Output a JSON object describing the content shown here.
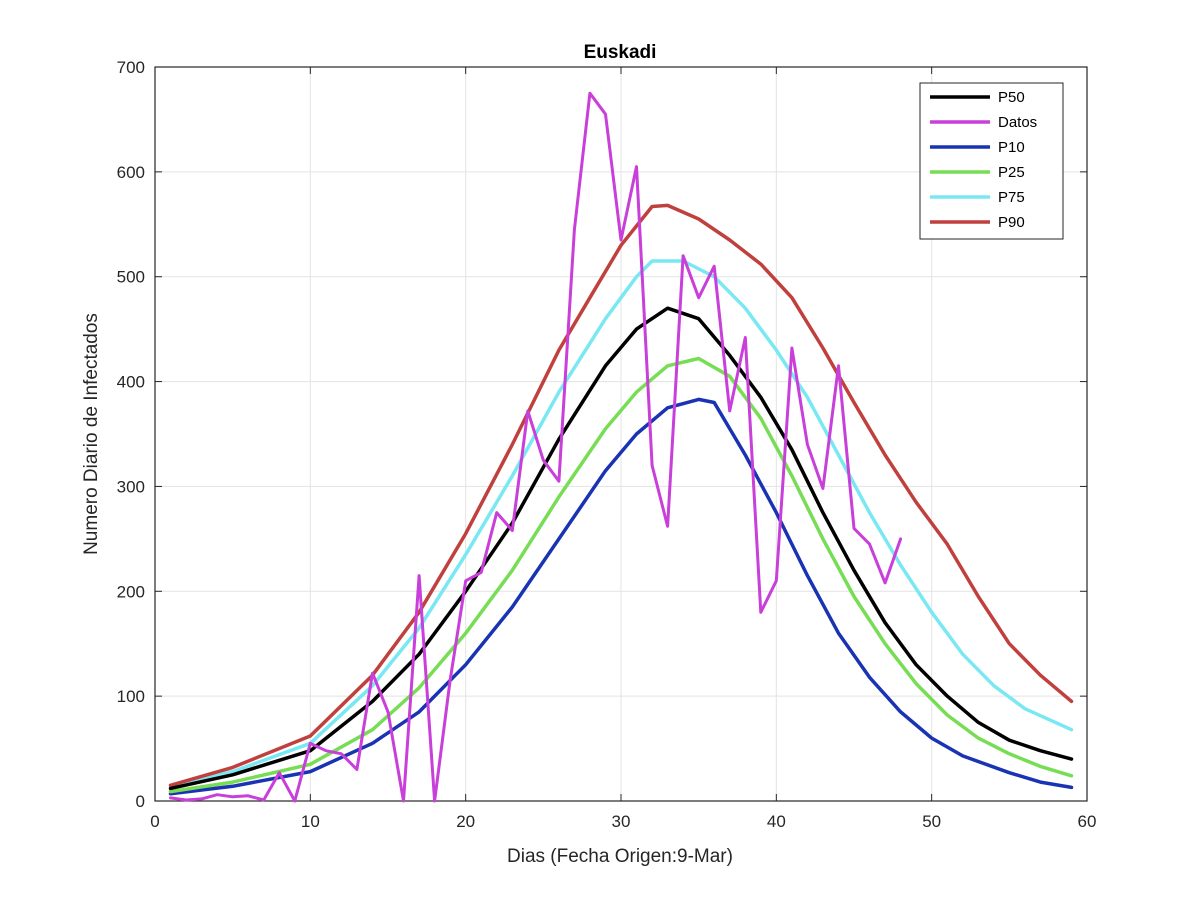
{
  "chart_data": {
    "type": "line",
    "title": "Euskadi",
    "xlabel": "Dias (Fecha Origen:9-Mar)",
    "ylabel": "Numero Diario de Infectados",
    "xlim": [
      0,
      60
    ],
    "ylim": [
      0,
      700
    ],
    "xticks": [
      "0",
      "10",
      "20",
      "30",
      "40",
      "50",
      "60"
    ],
    "yticks": [
      "0",
      "100",
      "200",
      "300",
      "400",
      "500",
      "600",
      "700"
    ],
    "grid": true,
    "legend_position": "top-right",
    "series": [
      {
        "name": "P50",
        "color": "#000000",
        "points": [
          [
            1,
            12
          ],
          [
            5,
            25
          ],
          [
            10,
            48
          ],
          [
            14,
            95
          ],
          [
            17,
            140
          ],
          [
            20,
            200
          ],
          [
            23,
            265
          ],
          [
            26,
            345
          ],
          [
            29,
            415
          ],
          [
            31,
            450
          ],
          [
            33,
            470
          ],
          [
            35,
            460
          ],
          [
            37,
            425
          ],
          [
            39,
            385
          ],
          [
            41,
            335
          ],
          [
            43,
            275
          ],
          [
            45,
            220
          ],
          [
            47,
            170
          ],
          [
            49,
            130
          ],
          [
            51,
            100
          ],
          [
            53,
            75
          ],
          [
            55,
            58
          ],
          [
            57,
            48
          ],
          [
            59,
            40
          ]
        ]
      },
      {
        "name": "Datos",
        "color": "#c83fd9",
        "points": [
          [
            1,
            3
          ],
          [
            2,
            1
          ],
          [
            3,
            2
          ],
          [
            4,
            6
          ],
          [
            5,
            4
          ],
          [
            6,
            5
          ],
          [
            7,
            1
          ],
          [
            8,
            27
          ],
          [
            9,
            0
          ],
          [
            10,
            55
          ],
          [
            11,
            48
          ],
          [
            12,
            45
          ],
          [
            13,
            30
          ],
          [
            14,
            122
          ],
          [
            15,
            85
          ],
          [
            16,
            0
          ],
          [
            17,
            215
          ],
          [
            18,
            0
          ],
          [
            19,
            115
          ],
          [
            20,
            210
          ],
          [
            21,
            218
          ],
          [
            22,
            275
          ],
          [
            23,
            258
          ],
          [
            24,
            372
          ],
          [
            25,
            325
          ],
          [
            26,
            305
          ],
          [
            27,
            545
          ],
          [
            28,
            675
          ],
          [
            29,
            655
          ],
          [
            30,
            535
          ],
          [
            31,
            605
          ],
          [
            32,
            320
          ],
          [
            33,
            262
          ],
          [
            34,
            520
          ],
          [
            35,
            480
          ],
          [
            36,
            510
          ],
          [
            37,
            372
          ],
          [
            38,
            442
          ],
          [
            39,
            180
          ],
          [
            40,
            210
          ],
          [
            41,
            432
          ],
          [
            42,
            340
          ],
          [
            43,
            298
          ],
          [
            44,
            415
          ],
          [
            45,
            260
          ],
          [
            46,
            245
          ],
          [
            47,
            208
          ],
          [
            48,
            250
          ]
        ]
      },
      {
        "name": "P10",
        "color": "#1a33b3",
        "points": [
          [
            1,
            7
          ],
          [
            5,
            14
          ],
          [
            10,
            28
          ],
          [
            14,
            55
          ],
          [
            17,
            85
          ],
          [
            20,
            130
          ],
          [
            23,
            185
          ],
          [
            26,
            250
          ],
          [
            29,
            315
          ],
          [
            31,
            350
          ],
          [
            33,
            375
          ],
          [
            35,
            383
          ],
          [
            36,
            380
          ],
          [
            38,
            330
          ],
          [
            40,
            275
          ],
          [
            42,
            215
          ],
          [
            44,
            160
          ],
          [
            46,
            118
          ],
          [
            48,
            85
          ],
          [
            50,
            60
          ],
          [
            52,
            43
          ],
          [
            55,
            27
          ],
          [
            57,
            18
          ],
          [
            59,
            13
          ]
        ]
      },
      {
        "name": "P25",
        "color": "#77dd55",
        "points": [
          [
            1,
            9
          ],
          [
            5,
            18
          ],
          [
            10,
            35
          ],
          [
            14,
            68
          ],
          [
            17,
            108
          ],
          [
            20,
            160
          ],
          [
            23,
            220
          ],
          [
            26,
            290
          ],
          [
            29,
            355
          ],
          [
            31,
            390
          ],
          [
            33,
            415
          ],
          [
            35,
            422
          ],
          [
            37,
            405
          ],
          [
            39,
            365
          ],
          [
            41,
            310
          ],
          [
            43,
            250
          ],
          [
            45,
            195
          ],
          [
            47,
            150
          ],
          [
            49,
            112
          ],
          [
            51,
            82
          ],
          [
            53,
            60
          ],
          [
            55,
            45
          ],
          [
            57,
            33
          ],
          [
            59,
            24
          ]
        ]
      },
      {
        "name": "P75",
        "color": "#7ae8f2",
        "points": [
          [
            1,
            14
          ],
          [
            5,
            28
          ],
          [
            10,
            55
          ],
          [
            14,
            110
          ],
          [
            17,
            165
          ],
          [
            20,
            235
          ],
          [
            23,
            310
          ],
          [
            26,
            390
          ],
          [
            29,
            460
          ],
          [
            31,
            500
          ],
          [
            32,
            515
          ],
          [
            34,
            515
          ],
          [
            36,
            500
          ],
          [
            38,
            470
          ],
          [
            40,
            430
          ],
          [
            42,
            385
          ],
          [
            44,
            330
          ],
          [
            46,
            275
          ],
          [
            48,
            225
          ],
          [
            50,
            180
          ],
          [
            52,
            140
          ],
          [
            54,
            110
          ],
          [
            56,
            88
          ],
          [
            59,
            68
          ]
        ]
      },
      {
        "name": "P90",
        "color": "#c0403e",
        "points": [
          [
            1,
            15
          ],
          [
            5,
            32
          ],
          [
            10,
            62
          ],
          [
            14,
            120
          ],
          [
            17,
            180
          ],
          [
            20,
            255
          ],
          [
            23,
            340
          ],
          [
            26,
            430
          ],
          [
            28,
            480
          ],
          [
            30,
            530
          ],
          [
            32,
            567
          ],
          [
            33,
            568
          ],
          [
            35,
            555
          ],
          [
            37,
            535
          ],
          [
            39,
            512
          ],
          [
            41,
            480
          ],
          [
            43,
            432
          ],
          [
            45,
            380
          ],
          [
            47,
            330
          ],
          [
            49,
            285
          ],
          [
            51,
            245
          ],
          [
            53,
            195
          ],
          [
            55,
            150
          ],
          [
            57,
            120
          ],
          [
            59,
            95
          ]
        ]
      }
    ]
  }
}
